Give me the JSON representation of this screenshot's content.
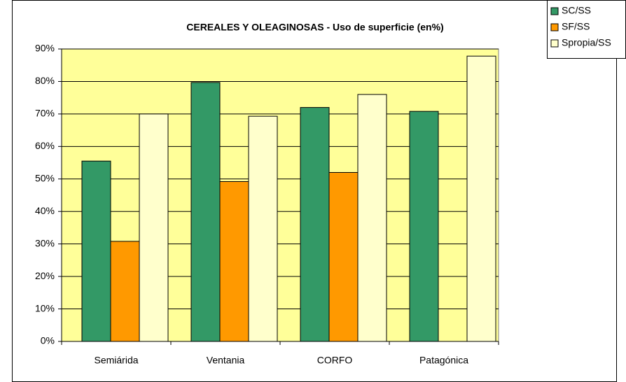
{
  "chart_data": {
    "type": "bar",
    "title": "CEREALES Y OLEAGINOSAS - Uso de superficie (en%)",
    "categories": [
      "Semiárida",
      "Ventania",
      "CORFO",
      "Patagónica"
    ],
    "series": [
      {
        "name": "SC/SS",
        "color": "#339966",
        "values": [
          55.5,
          79.7,
          72,
          70.8
        ]
      },
      {
        "name": "SF/SS",
        "color": "#FF9900",
        "values": [
          30.8,
          49.2,
          52,
          null
        ]
      },
      {
        "name": "Spropia/SS",
        "color": "#FFFFCC",
        "values": [
          70,
          69.3,
          76,
          87.8
        ]
      }
    ],
    "ylim": [
      0,
      90
    ],
    "yticks": [
      {
        "value": 0,
        "label": "0%"
      },
      {
        "value": 10,
        "label": "10%"
      },
      {
        "value": 20,
        "label": "20%"
      },
      {
        "value": 30,
        "label": "30%"
      },
      {
        "value": 40,
        "label": "40%"
      },
      {
        "value": 50,
        "label": "50%"
      },
      {
        "value": 60,
        "label": "60%"
      },
      {
        "value": 70,
        "label": "70%"
      },
      {
        "value": 80,
        "label": "80%"
      },
      {
        "value": 90,
        "label": "90%"
      }
    ],
    "grid": true,
    "legend": "top-right",
    "plot_background": "#FFFF99"
  }
}
